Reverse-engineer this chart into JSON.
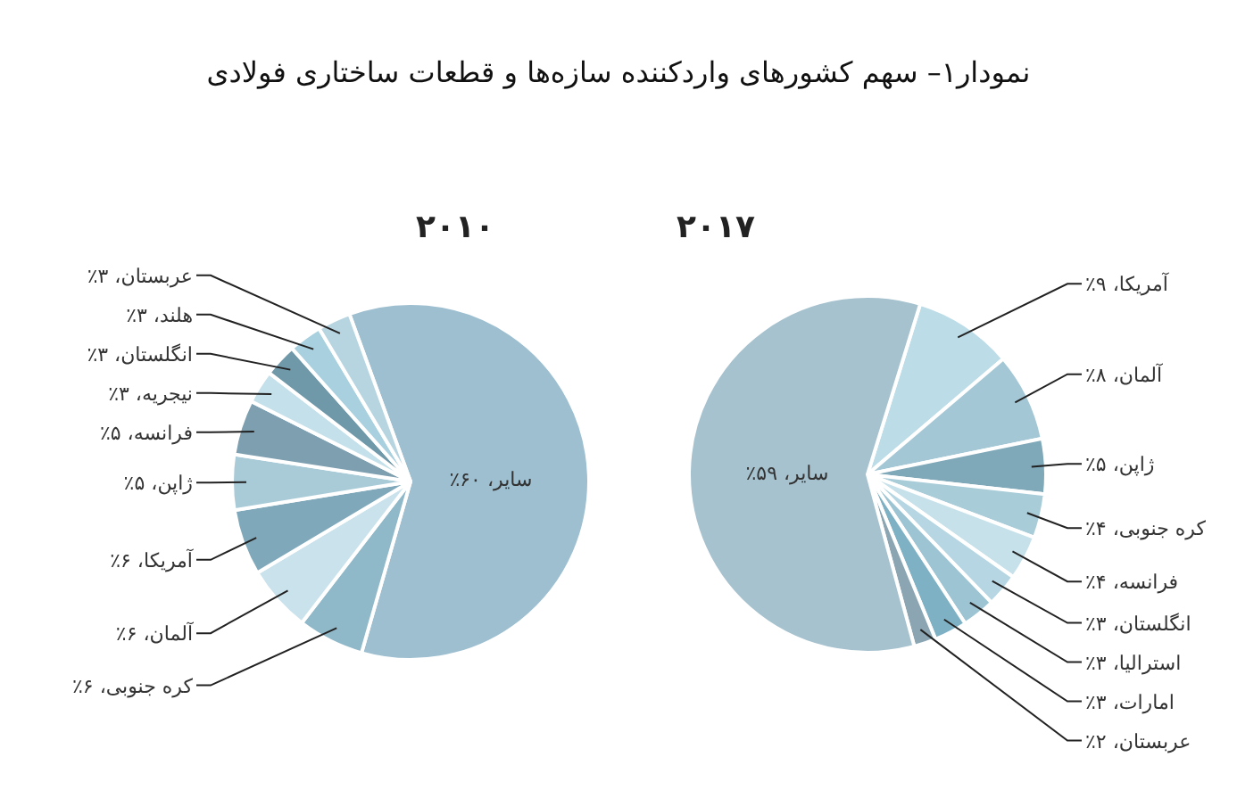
{
  "chart_data": [
    {
      "type": "pie",
      "title": "نمودار۱– سهم کشورهای واردکننده سازه‌ها و قطعات ساختاری فولادی",
      "subtitle": "۲۰۱۰",
      "categories": [
        "سایر",
        "کره جنوبی",
        "آلمان",
        "آمریکا",
        "ژاپن",
        "فرانسه",
        "نیجریه",
        "انگلستان",
        "هلند",
        "عربستان"
      ],
      "values": [
        60,
        6,
        6,
        6,
        5,
        5,
        3,
        3,
        3,
        3
      ],
      "value_labels": [
        "۶۰٪",
        "۶٪",
        "۶٪",
        "۶٪",
        "۵٪",
        "۵٪",
        "۳٪",
        "۳٪",
        "۳٪",
        "۳٪"
      ],
      "colors": [
        "#9dbfd0",
        "#8fb8c9",
        "#c9e2ec",
        "#7fa9bb",
        "#a9cbd8",
        "#7d9fb0",
        "#c4e0ea",
        "#6f98a9",
        "#a8d0de",
        "#b7d5e0"
      ]
    },
    {
      "type": "pie",
      "subtitle": "۲۰۱۷",
      "categories": [
        "آمریکا",
        "آلمان",
        "ژاپن",
        "کره جنوبی",
        "فرانسه",
        "انگلستان",
        "استرالیا",
        "امارات",
        "عربستان",
        "سایر"
      ],
      "values": [
        9,
        8,
        5,
        4,
        4,
        3,
        3,
        3,
        2,
        59
      ],
      "value_labels": [
        "۹٪",
        "۸٪",
        "۵٪",
        "۴٪",
        "۴٪",
        "۳٪",
        "۳٪",
        "۳٪",
        "۲٪",
        "۵۹٪"
      ],
      "colors": [
        "#bcdce7",
        "#a4c7d5",
        "#7fa8b9",
        "#a9ccd9",
        "#c7e1ea",
        "#b5d6e2",
        "#9cc4d3",
        "#7fb1c4",
        "#8ba6b2",
        "#a6c2cf"
      ]
    }
  ]
}
